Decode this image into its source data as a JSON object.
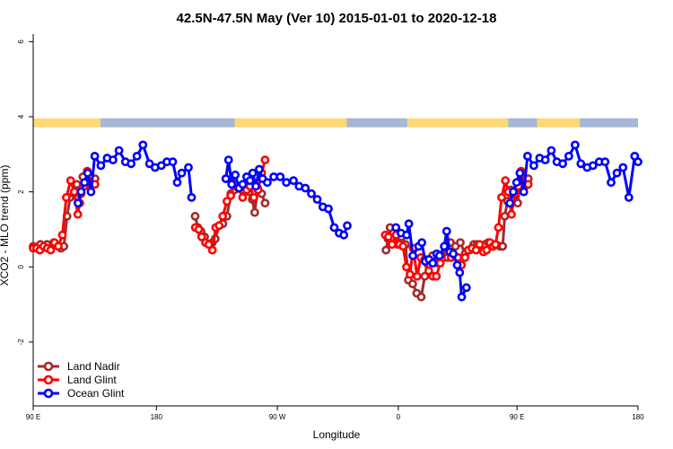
{
  "chart_data": {
    "type": "line",
    "title": "42.5N-47.5N May (Ver 10)   2015-01-01 to 2020-12-18",
    "xlabel": "Longitude",
    "ylabel": "XCO2 - MLO trend (ppm)",
    "xlim": [
      -90,
      180
    ],
    "ylim": [
      -3.7,
      6.2
    ],
    "grid": false,
    "legend_position": "bottom-left",
    "x_ticks": [
      {
        "value": -90,
        "label": "90 E"
      },
      {
        "value": -35,
        "label": "180"
      },
      {
        "value": 19,
        "label": "90 W"
      },
      {
        "value": 73,
        "label": "0"
      },
      {
        "value": 126,
        "label": "90 E"
      },
      {
        "value": 180,
        "label": "180"
      }
    ],
    "y_ticks": [
      -2,
      0,
      2,
      4,
      6
    ],
    "land_ocean_band": {
      "y_range": [
        3.72,
        3.96
      ],
      "land_color": "#fcd975",
      "ocean_color": "#a5b8d5",
      "segments": [
        {
          "from": -90,
          "to": -60,
          "type": "land"
        },
        {
          "from": -60,
          "to": 0,
          "type": "ocean"
        },
        {
          "from": 0,
          "to": 50,
          "type": "land"
        },
        {
          "from": 50,
          "to": 77,
          "type": "ocean"
        },
        {
          "from": 77,
          "to": 122,
          "type": "land"
        },
        {
          "from": 122,
          "to": 135,
          "type": "ocean"
        },
        {
          "from": 135,
          "to": 154,
          "type": "land"
        },
        {
          "from": 154,
          "to": 180,
          "type": "ocean"
        }
      ]
    },
    "series": [
      {
        "name": "Land Nadir",
        "color": "#a52a2a",
        "segments": [
          [
            [
              -90,
              0.55
            ],
            [
              -86.8,
              0.6
            ],
            [
              -83.8,
              0.6
            ],
            [
              -80.8,
              0.65
            ],
            [
              -77.6,
              0.5
            ],
            [
              -76.3,
              0.55
            ],
            [
              -74.9,
              1.35
            ],
            [
              -73.5,
              1.85
            ],
            [
              -71.8,
              1.95
            ],
            [
              -70.5,
              2.2
            ],
            [
              -69.2,
              1.7
            ],
            [
              -67.8,
              2.4
            ],
            [
              -65,
              2.15
            ],
            [
              -62.4,
              2.35
            ]
          ],
          [
            [
              -17.7,
              1.35
            ],
            [
              -16.5,
              1.05
            ],
            [
              -15.1,
              0.95
            ],
            [
              -13.5,
              0.8
            ],
            [
              -11.7,
              0.6
            ],
            [
              -10,
              0.65
            ],
            [
              -8.7,
              0.75
            ],
            [
              -7,
              1.1
            ],
            [
              -5.3,
              1.15
            ],
            [
              -3.5,
              1.35
            ],
            [
              -1.8,
              1.95
            ],
            [
              -0.1,
              2.05
            ],
            [
              1.6,
              2.15
            ],
            [
              3.3,
              2.05
            ],
            [
              4.9,
              2.15
            ],
            [
              6.4,
              2
            ],
            [
              7.8,
              1.8
            ],
            [
              8.9,
              1.45
            ],
            [
              10.2,
              2.1
            ],
            [
              12,
              1.95
            ],
            [
              13.5,
              1.7
            ]
          ],
          [
            [
              67.5,
              0.45
            ],
            [
              68.4,
              0.75
            ],
            [
              69.3,
              1.05
            ],
            [
              70.8,
              0.9
            ],
            [
              72.6,
              0.6
            ],
            [
              74.4,
              0.8
            ],
            [
              76.2,
              0.6
            ],
            [
              77.5,
              -0.35
            ],
            [
              79.4,
              -0.45
            ],
            [
              81.2,
              -0.7
            ],
            [
              83.2,
              -0.8
            ],
            [
              84.8,
              -0.25
            ],
            [
              86.4,
              0.05
            ],
            [
              88.3,
              0.3
            ],
            [
              90.7,
              0.1
            ],
            [
              92.5,
              0.25
            ],
            [
              94.7,
              0.6
            ],
            [
              96.3,
              0.65
            ],
            [
              98.5,
              0.55
            ],
            [
              100.7,
              0.65
            ],
            [
              102.8,
              0.35
            ],
            [
              104.8,
              0.45
            ],
            [
              106.7,
              0.6
            ],
            [
              108.2,
              0.6
            ],
            [
              109.9,
              0.55
            ],
            [
              111.7,
              0.6
            ],
            [
              113.2,
              0.65
            ],
            [
              115,
              0.6
            ],
            [
              116.6,
              0.6
            ],
            [
              118.4,
              0.55
            ],
            [
              119.6,
              0.55
            ],
            [
              120.5,
              1.35
            ],
            [
              121.7,
              1.75
            ],
            [
              123.3,
              2.05
            ],
            [
              124.8,
              1.95
            ],
            [
              126.3,
              1.7
            ],
            [
              127.8,
              2.4
            ],
            [
              129.5,
              2.15
            ],
            [
              131,
              2.35
            ]
          ]
        ]
      },
      {
        "name": "Land Glint",
        "color": "#ff0000",
        "segments": [
          [
            [
              -90,
              0.5
            ],
            [
              -88.5,
              0.5
            ],
            [
              -87,
              0.45
            ],
            [
              -85.3,
              0.55
            ],
            [
              -83.7,
              0.5
            ],
            [
              -82.2,
              0.45
            ],
            [
              -80.5,
              0.65
            ],
            [
              -78.8,
              0.55
            ],
            [
              -77,
              0.85
            ],
            [
              -75.2,
              1.85
            ],
            [
              -73.3,
              2.3
            ],
            [
              -71.7,
              2
            ],
            [
              -70.1,
              1.4
            ],
            [
              -68.6,
              1.95
            ],
            [
              -67.2,
              2.15
            ],
            [
              -65.9,
              2.55
            ],
            [
              -64,
              2.2
            ],
            [
              -62.4,
              2.2
            ]
          ],
          [
            [
              -17.6,
              1.05
            ],
            [
              -16.1,
              1
            ],
            [
              -14.8,
              0.8
            ],
            [
              -13.1,
              0.65
            ],
            [
              -11.6,
              0.6
            ],
            [
              -10,
              0.45
            ],
            [
              -8.5,
              1.05
            ],
            [
              -7,
              1.1
            ],
            [
              -5.4,
              1.35
            ],
            [
              -3.5,
              1.75
            ],
            [
              -1.8,
              1.9
            ],
            [
              -0.1,
              2.2
            ],
            [
              1.6,
              2.1
            ],
            [
              3.5,
              1.85
            ],
            [
              5.3,
              2.05
            ],
            [
              6.8,
              2.15
            ],
            [
              8.5,
              1.85
            ],
            [
              10.4,
              2.05
            ],
            [
              12,
              2.5
            ],
            [
              13.5,
              2.85
            ]
          ],
          [
            [
              67.2,
              0.85
            ],
            [
              68.6,
              0.8
            ],
            [
              70.2,
              0.6
            ],
            [
              72,
              0.85
            ],
            [
              73.6,
              0.6
            ],
            [
              75.1,
              0.55
            ],
            [
              76.6,
              0
            ],
            [
              78.2,
              -0.2
            ],
            [
              79.6,
              0.5
            ],
            [
              81.4,
              -0.25
            ],
            [
              83,
              0.25
            ],
            [
              84.8,
              0.2
            ],
            [
              86.6,
              -0.1
            ],
            [
              88.4,
              -0.25
            ],
            [
              90,
              -0.25
            ],
            [
              91.7,
              0.1
            ],
            [
              93.4,
              0.25
            ],
            [
              95,
              0.25
            ],
            [
              96.6,
              0.25
            ],
            [
              98.2,
              0.3
            ],
            [
              99.6,
              0.25
            ],
            [
              101.2,
              0.05
            ],
            [
              102.8,
              0.25
            ],
            [
              104.2,
              0.45
            ],
            [
              105.9,
              0.5
            ],
            [
              107.7,
              0.45
            ],
            [
              109.3,
              0.6
            ],
            [
              111,
              0.4
            ],
            [
              112.4,
              0.45
            ],
            [
              113.9,
              0.65
            ],
            [
              115.3,
              0.55
            ],
            [
              116.4,
              0.6
            ],
            [
              117.7,
              1.05
            ],
            [
              119.1,
              1.85
            ],
            [
              120.8,
              2.3
            ],
            [
              122.1,
              2
            ],
            [
              123.5,
              1.4
            ],
            [
              125.1,
              1.95
            ],
            [
              126.6,
              2.15
            ],
            [
              127.8,
              2.55
            ],
            [
              129.5,
              2.2
            ],
            [
              131,
              2.2
            ]
          ]
        ]
      },
      {
        "name": "Ocean Glint",
        "color": "#0000ff",
        "segments": [
          [
            [
              -70,
              1.7
            ],
            [
              -68.6,
              2
            ],
            [
              -67.1,
              2.25
            ],
            [
              -65.7,
              2.5
            ],
            [
              -64.2,
              2
            ],
            [
              -62.5,
              2.95
            ],
            [
              -59.8,
              2.7
            ],
            [
              -57,
              2.9
            ],
            [
              -54.4,
              2.85
            ],
            [
              -51.7,
              3.1
            ],
            [
              -48.8,
              2.8
            ],
            [
              -46.3,
              2.75
            ],
            [
              -43.7,
              2.95
            ],
            [
              -41,
              3.25
            ],
            [
              -38.1,
              2.75
            ],
            [
              -35.6,
              2.65
            ],
            [
              -32.8,
              2.7
            ],
            [
              -30.3,
              2.8
            ],
            [
              -27.7,
              2.8
            ],
            [
              -25.7,
              2.25
            ],
            [
              -23.7,
              2.5
            ],
            [
              -20.7,
              2.65
            ],
            [
              -19.3,
              1.85
            ]
          ],
          [
            [
              -4,
              2.35
            ],
            [
              -2.8,
              2.85
            ],
            [
              -1.4,
              2.2
            ],
            [
              0.2,
              2.45
            ],
            [
              1.9,
              2.1
            ],
            [
              3.5,
              2.2
            ],
            [
              5.3,
              2.4
            ],
            [
              6.8,
              2.3
            ],
            [
              8,
              2.5
            ],
            [
              9.4,
              2.15
            ],
            [
              10.9,
              2.6
            ],
            [
              12.4,
              2.35
            ],
            [
              14.5,
              2.25
            ],
            [
              17.4,
              2.4
            ],
            [
              20.3,
              2.4
            ],
            [
              23,
              2.25
            ],
            [
              26.2,
              2.3
            ],
            [
              28.7,
              2.15
            ],
            [
              31.5,
              2.1
            ],
            [
              34.2,
              1.95
            ],
            [
              36.8,
              1.8
            ],
            [
              39.3,
              1.6
            ],
            [
              41.8,
              1.55
            ],
            [
              44.4,
              1.05
            ],
            [
              46.6,
              0.9
            ],
            [
              48.7,
              0.85
            ],
            [
              50.2,
              1.1
            ]
          ],
          [
            [
              71.9,
              1.05
            ],
            [
              74.2,
              0.9
            ],
            [
              76.7,
              0.85
            ],
            [
              77.7,
              1.15
            ],
            [
              79.5,
              0.3
            ],
            [
              82.1,
              0.55
            ],
            [
              83.5,
              0.65
            ],
            [
              85,
              0.15
            ],
            [
              86.7,
              0.2
            ],
            [
              88.4,
              0.1
            ],
            [
              90.1,
              0.35
            ],
            [
              91.4,
              0.3
            ],
            [
              93.5,
              0.55
            ],
            [
              94.6,
              0.95
            ],
            [
              96,
              0.4
            ],
            [
              97.5,
              0.35
            ],
            [
              99.3,
              0.05
            ],
            [
              100.4,
              -0.15
            ],
            [
              101.3,
              -0.8
            ],
            [
              103.4,
              -0.55
            ]
          ],
          [
            [
              122.8,
              1.7
            ],
            [
              124.3,
              2
            ],
            [
              125.8,
              2.25
            ],
            [
              127.3,
              2.5
            ],
            [
              129,
              2
            ],
            [
              130.7,
              2.95
            ],
            [
              133.5,
              2.7
            ],
            [
              136.1,
              2.9
            ],
            [
              138.6,
              2.85
            ],
            [
              141.3,
              3.1
            ],
            [
              143.8,
              2.8
            ],
            [
              146.4,
              2.75
            ],
            [
              149.1,
              2.95
            ],
            [
              151.9,
              3.25
            ],
            [
              154.5,
              2.75
            ],
            [
              157.3,
              2.65
            ],
            [
              159.9,
              2.7
            ],
            [
              162.7,
              2.8
            ],
            [
              165.3,
              2.8
            ],
            [
              168,
              2.25
            ],
            [
              170.6,
              2.5
            ],
            [
              173.3,
              2.65
            ],
            [
              175.9,
              1.85
            ],
            [
              178.5,
              2.95
            ],
            [
              180,
              2.8
            ]
          ]
        ]
      }
    ]
  }
}
